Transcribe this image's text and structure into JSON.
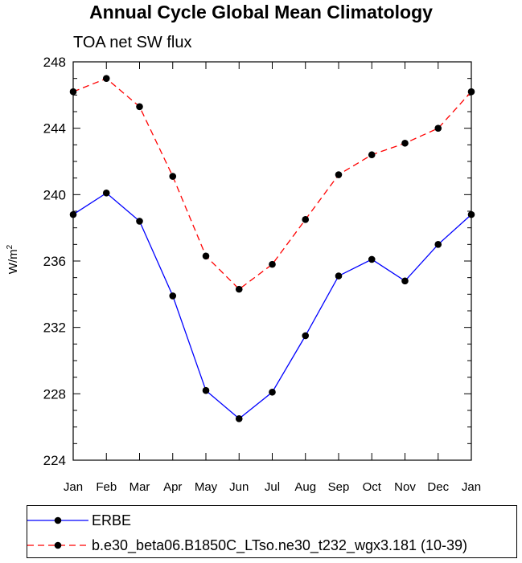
{
  "chart_data": {
    "type": "line",
    "title": "Annual Cycle Global Mean Climatology",
    "subtitle": "TOA net SW flux",
    "ylabel_base": "W/m",
    "ylabel_sup": "2",
    "xlabel": "",
    "categories": [
      "Jan",
      "Feb",
      "Mar",
      "Apr",
      "May",
      "Jun",
      "Jul",
      "Aug",
      "Sep",
      "Oct",
      "Nov",
      "Dec",
      "Jan"
    ],
    "ylim": [
      224,
      248
    ],
    "yticks": [
      224,
      228,
      232,
      236,
      240,
      244,
      248
    ],
    "series": [
      {
        "name": "ERBE",
        "color": "#0000ff",
        "dash": "solid",
        "marker": "circle",
        "values": [
          238.8,
          240.1,
          238.4,
          233.9,
          228.2,
          226.5,
          228.1,
          231.5,
          235.1,
          236.1,
          234.8,
          237.0,
          238.8
        ]
      },
      {
        "name": "b.e30_beta06.B1850C_LTso.ne30_t232_wgx3.181 (10-39)",
        "color": "#ff0000",
        "dash": "dashed",
        "marker": "circle",
        "values": [
          246.2,
          247.0,
          245.3,
          241.1,
          236.3,
          234.3,
          235.8,
          238.5,
          241.2,
          242.4,
          243.1,
          244.0,
          246.2
        ]
      }
    ]
  }
}
